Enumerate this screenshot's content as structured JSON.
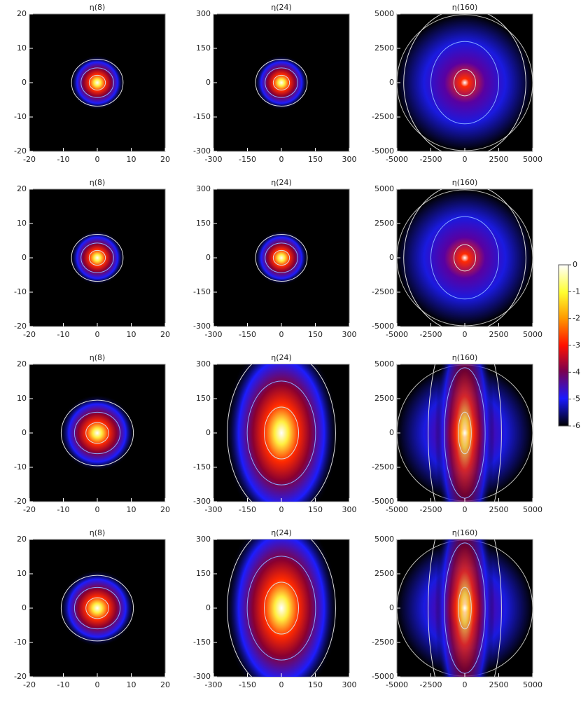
{
  "chart_data": [
    {
      "type": "heatmap",
      "title": "η(8)",
      "xlim": [
        -20,
        20
      ],
      "ylim": [
        -20,
        20
      ],
      "xticks": [
        -20,
        -10,
        0,
        10,
        20
      ],
      "yticks": [
        -20,
        -10,
        0,
        10,
        20
      ]
    },
    {
      "type": "heatmap",
      "title": "η(24)",
      "xlim": [
        -300,
        300
      ],
      "ylim": [
        -300,
        300
      ],
      "xticks": [
        -300,
        -150,
        0,
        150,
        300
      ],
      "yticks": [
        -300,
        -150,
        0,
        150,
        300
      ]
    },
    {
      "type": "heatmap",
      "title": "η(160)",
      "xlim": [
        -5000,
        5000
      ],
      "ylim": [
        -5000,
        5000
      ],
      "xticks": [
        -5000,
        -2500,
        0,
        2500,
        5000
      ],
      "yticks": [
        -5000,
        -2500,
        0,
        2500,
        5000
      ]
    },
    {
      "type": "heatmap",
      "title": "η(8)",
      "xlim": [
        -20,
        20
      ],
      "ylim": [
        -20,
        20
      ],
      "xticks": [
        -20,
        -10,
        0,
        10,
        20
      ],
      "yticks": [
        -20,
        -10,
        0,
        10,
        20
      ]
    },
    {
      "type": "heatmap",
      "title": "η(24)",
      "xlim": [
        -300,
        300
      ],
      "ylim": [
        -300,
        300
      ],
      "xticks": [
        -300,
        -150,
        0,
        150,
        300
      ],
      "yticks": [
        -300,
        -150,
        0,
        150,
        300
      ]
    },
    {
      "type": "heatmap",
      "title": "η(160)",
      "xlim": [
        -5000,
        5000
      ],
      "ylim": [
        -5000,
        5000
      ],
      "xticks": [
        -5000,
        -2500,
        0,
        2500,
        5000
      ],
      "yticks": [
        -5000,
        -2500,
        0,
        2500,
        5000
      ]
    },
    {
      "type": "heatmap",
      "title": "η(8)",
      "xlim": [
        -20,
        20
      ],
      "ylim": [
        -20,
        20
      ],
      "xticks": [
        -20,
        -10,
        0,
        10,
        20
      ],
      "yticks": [
        -20,
        -10,
        0,
        10,
        20
      ]
    },
    {
      "type": "heatmap",
      "title": "η(24)",
      "xlim": [
        -300,
        300
      ],
      "ylim": [
        -300,
        300
      ],
      "xticks": [
        -300,
        -150,
        0,
        150,
        300
      ],
      "yticks": [
        -300,
        -150,
        0,
        150,
        300
      ]
    },
    {
      "type": "heatmap",
      "title": "η(160)",
      "xlim": [
        -5000,
        5000
      ],
      "ylim": [
        -5000,
        5000
      ],
      "xticks": [
        -5000,
        -2500,
        0,
        2500,
        5000
      ],
      "yticks": [
        -5000,
        -2500,
        0,
        2500,
        5000
      ]
    },
    {
      "type": "heatmap",
      "title": "η(8)",
      "xlim": [
        -20,
        20
      ],
      "ylim": [
        -20,
        20
      ],
      "xticks": [
        -20,
        -10,
        0,
        10,
        20
      ],
      "yticks": [
        -20,
        -10,
        0,
        10,
        20
      ]
    },
    {
      "type": "heatmap",
      "title": "η(24)",
      "xlim": [
        -300,
        300
      ],
      "ylim": [
        -300,
        300
      ],
      "xticks": [
        -300,
        -150,
        0,
        150,
        300
      ],
      "yticks": [
        -300,
        -150,
        0,
        150,
        300
      ]
    },
    {
      "type": "heatmap",
      "title": "η(160)",
      "xlim": [
        -5000,
        5000
      ],
      "ylim": [
        -5000,
        5000
      ],
      "xticks": [
        -5000,
        -2500,
        0,
        2500,
        5000
      ],
      "yticks": [
        -5000,
        -2500,
        0,
        2500,
        5000
      ]
    },
    {
      "type": "colorbar",
      "ylim": [
        -6,
        0
      ],
      "yticks": [
        0,
        -1,
        -2,
        -3,
        -4,
        -5,
        -6
      ]
    }
  ]
}
